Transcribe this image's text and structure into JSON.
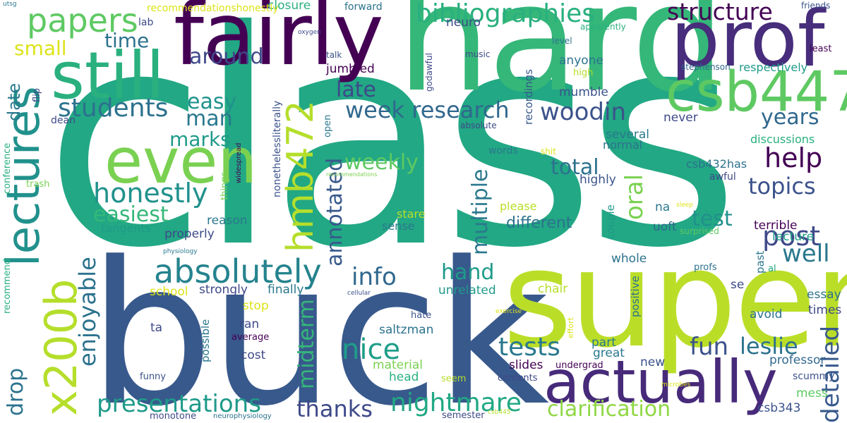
{
  "words": [
    {
      "text": "class",
      "color": "#22a884"
    },
    {
      "text": "buck",
      "color": "#38598c"
    },
    {
      "text": "hard",
      "color": "#35b779"
    },
    {
      "text": "super",
      "color": "#bade28"
    },
    {
      "text": "fairly",
      "color": "#440154"
    },
    {
      "text": "prof",
      "color": "#472d7b"
    },
    {
      "text": "lectures",
      "color": "#21918c"
    },
    {
      "text": "still",
      "color": "#2ab07f"
    },
    {
      "text": "csb447",
      "color": "#5ec962"
    },
    {
      "text": "even",
      "color": "#7ad151"
    },
    {
      "text": "x200b",
      "color": "#b5de2b"
    },
    {
      "text": "hmb472",
      "color": "#b5de2b"
    },
    {
      "text": "actually",
      "color": "#472a7a"
    },
    {
      "text": "absolutely",
      "color": "#25838e"
    },
    {
      "text": "papers",
      "color": "#5ec962"
    },
    {
      "text": "bibliographies",
      "color": "#2ab07f"
    },
    {
      "text": "structure",
      "color": "#440154"
    },
    {
      "text": "honestly",
      "color": "#21918c"
    },
    {
      "text": "easiest",
      "color": "#35b779"
    },
    {
      "text": "enjoyable",
      "color": "#2c728e"
    },
    {
      "text": "students",
      "color": "#2c728e"
    },
    {
      "text": "week",
      "color": "#31688e"
    },
    {
      "text": "research",
      "color": "#31688e"
    },
    {
      "text": "woodin",
      "color": "#3b528b"
    },
    {
      "text": "presentations",
      "color": "#1f9a8a"
    },
    {
      "text": "nightmare",
      "color": "#22a884"
    },
    {
      "text": "thanks",
      "color": "#3e4989"
    },
    {
      "text": "nice",
      "color": "#1f9e89"
    },
    {
      "text": "tests",
      "color": "#2a788e"
    },
    {
      "text": "fun",
      "color": "#3b528b"
    },
    {
      "text": "leslie",
      "color": "#2c728e"
    },
    {
      "text": "post",
      "color": "#3e4989"
    },
    {
      "text": "help",
      "color": "#440154"
    },
    {
      "text": "topics",
      "color": "#3b528b"
    },
    {
      "text": "oral",
      "color": "#7ad151"
    },
    {
      "text": "multiple",
      "color": "#2a788e"
    },
    {
      "text": "clarification",
      "color": "#8fd744"
    },
    {
      "text": "detailed",
      "color": "#38598c"
    },
    {
      "text": "drop",
      "color": "#2c728e"
    },
    {
      "text": "midterm",
      "color": "#35b779"
    },
    {
      "text": "annotated",
      "color": "#38598c"
    },
    {
      "text": "well",
      "color": "#2a788e"
    },
    {
      "text": "years",
      "color": "#31688e"
    },
    {
      "text": "late",
      "color": "#3e4989"
    },
    {
      "text": "info",
      "color": "#31688e"
    },
    {
      "text": "hand",
      "color": "#1e9b8a"
    },
    {
      "text": "around",
      "color": "#3e4989"
    },
    {
      "text": "easy",
      "color": "#20928c"
    },
    {
      "text": "man",
      "color": "#2a788e"
    },
    {
      "text": "total",
      "color": "#2c728e"
    },
    {
      "text": "weekly",
      "color": "#5ec962"
    },
    {
      "text": "test",
      "color": "#21918c"
    },
    {
      "text": "marks",
      "color": "#1f9a8a"
    },
    {
      "text": "different",
      "color": "#2c728e"
    },
    {
      "text": "time",
      "color": "#2c728e"
    },
    {
      "text": "small",
      "color": "#dde318"
    },
    {
      "text": "date",
      "color": "#2a788e"
    },
    {
      "text": "terrible",
      "color": "#440154"
    },
    {
      "text": "essay",
      "color": "#2c728e"
    },
    {
      "text": "times",
      "color": "#3e4989"
    },
    {
      "text": "csb343",
      "color": "#3b528b"
    },
    {
      "text": "mess",
      "color": "#5ec962"
    },
    {
      "text": "scummy",
      "color": "#3b528b"
    },
    {
      "text": "professor",
      "color": "#31688e"
    },
    {
      "text": "lecture",
      "color": "#1f9e89"
    },
    {
      "text": "discussions",
      "color": "#2ab07f"
    },
    {
      "text": "csb432has",
      "color": "#2c728e"
    },
    {
      "text": "respectively",
      "color": "#1f9a8a"
    },
    {
      "text": "stephenson",
      "color": "#31688e"
    },
    {
      "text": "least",
      "color": "#440154"
    },
    {
      "text": "friends",
      "color": "#3b528b"
    },
    {
      "text": "awful",
      "color": "#3e4989"
    },
    {
      "text": "avoid",
      "color": "#2c728e"
    },
    {
      "text": "se",
      "color": "#3e4989"
    },
    {
      "text": "al",
      "color": "#22a884"
    },
    {
      "text": "profs",
      "color": "#2c728e"
    },
    {
      "text": "past",
      "color": "#2a788e"
    },
    {
      "text": "uoft",
      "color": "#31688e"
    },
    {
      "text": "na",
      "color": "#2a788e"
    },
    {
      "text": "couple",
      "color": "#1f9a8a"
    },
    {
      "text": "positive",
      "color": "#2c728e"
    },
    {
      "text": "great",
      "color": "#2a788e"
    },
    {
      "text": "part",
      "color": "#2a788e"
    },
    {
      "text": "new",
      "color": "#3b528b"
    },
    {
      "text": "whole",
      "color": "#2c728e"
    },
    {
      "text": "normal",
      "color": "#2c728e"
    },
    {
      "text": "several",
      "color": "#2a788e"
    },
    {
      "text": "highly",
      "color": "#3b528b"
    },
    {
      "text": "surprised",
      "color": "#5ec962"
    },
    {
      "text": "sleep",
      "color": "#dde318"
    },
    {
      "text": "never",
      "color": "#3e4989"
    },
    {
      "text": "mumble",
      "color": "#3b528b"
    },
    {
      "text": "high",
      "color": "#b5de2b"
    },
    {
      "text": "anyone",
      "color": "#2c728e"
    },
    {
      "text": "apparently",
      "color": "#2ab07f"
    },
    {
      "text": "level",
      "color": "#2c728e"
    },
    {
      "text": "music",
      "color": "#3e4989"
    },
    {
      "text": "recordings",
      "color": "#38598c"
    },
    {
      "text": "neuro",
      "color": "#3e4989"
    },
    {
      "text": "forward",
      "color": "#2c728e"
    },
    {
      "text": "closure",
      "color": "#2ab07f"
    },
    {
      "text": "jumbled",
      "color": "#440154"
    },
    {
      "text": "talk",
      "color": "#3b528b"
    },
    {
      "text": "oxygen",
      "color": "#3e4989"
    },
    {
      "text": "godawful",
      "color": "#3e4989"
    },
    {
      "text": "open",
      "color": "#2a788e"
    },
    {
      "text": "words",
      "color": "#2a788e"
    },
    {
      "text": "absolute",
      "color": "#3e4989"
    },
    {
      "text": "shit",
      "color": "#dde318"
    },
    {
      "text": "recommendations",
      "color": "#7ad151"
    },
    {
      "text": "please",
      "color": "#bade28"
    },
    {
      "text": "stare",
      "color": "#bade28"
    },
    {
      "text": "sense",
      "color": "#2a788e"
    },
    {
      "text": "chair",
      "color": "#b5de2b"
    },
    {
      "text": "unrelated",
      "color": "#1f9a8a"
    },
    {
      "text": "saltzman",
      "color": "#2c728e"
    },
    {
      "text": "cost",
      "color": "#3e4989"
    },
    {
      "text": "material",
      "color": "#7ad151"
    },
    {
      "text": "head",
      "color": "#2ab07f"
    },
    {
      "text": "slides",
      "color": "#440154"
    },
    {
      "text": "undergrad",
      "color": "#440154"
    },
    {
      "text": "seem",
      "color": "#b5de2b"
    },
    {
      "text": "contents",
      "color": "#3e4989"
    },
    {
      "text": "exercise",
      "color": "#dde318"
    },
    {
      "text": "effort",
      "color": "#dde318"
    },
    {
      "text": "microbes",
      "color": "#dde318"
    },
    {
      "text": "csb445",
      "color": "#b5de2b"
    },
    {
      "text": "semester",
      "color": "#3e4989"
    },
    {
      "text": "hate",
      "color": "#3b528b"
    },
    {
      "text": "possible",
      "color": "#2a788e"
    },
    {
      "text": "average",
      "color": "#440154"
    },
    {
      "text": "ran",
      "color": "#3e4989"
    },
    {
      "text": "stop",
      "color": "#dde318"
    },
    {
      "text": "finally",
      "color": "#2a788e"
    },
    {
      "text": "strongly",
      "color": "#3e4989"
    },
    {
      "text": "school",
      "color": "#dde318"
    },
    {
      "text": "ta",
      "color": "#3e4989"
    },
    {
      "text": "funny",
      "color": "#3b528b"
    },
    {
      "text": "cellular",
      "color": "#3b528b"
    },
    {
      "text": "monotone",
      "color": "#3e4989"
    },
    {
      "text": "neurophysiology",
      "color": "#2c728e"
    },
    {
      "text": "physiology",
      "color": "#2a788e"
    },
    {
      "text": "recommend",
      "color": "#2ab07f"
    },
    {
      "text": "conference",
      "color": "#2ab07f"
    },
    {
      "text": "trash",
      "color": "#7ad151"
    },
    {
      "text": "things",
      "color": "#7ad151"
    },
    {
      "text": "nonethelessliterally",
      "color": "#3b528b"
    },
    {
      "text": "widespread",
      "color": "#440154"
    },
    {
      "text": "friend",
      "color": "#2a788e"
    },
    {
      "text": "reason",
      "color": "#2a788e"
    },
    {
      "text": "tangents",
      "color": "#1f9a8a"
    },
    {
      "text": "properly",
      "color": "#3e4989"
    },
    {
      "text": "flip",
      "color": "#3e4989"
    },
    {
      "text": "dean",
      "color": "#3e4989"
    },
    {
      "text": "lab",
      "color": "#3e4989"
    },
    {
      "text": "recommendationshonestly",
      "color": "#dde318"
    },
    {
      "text": "utsg",
      "color": "#2a788e"
    }
  ]
}
